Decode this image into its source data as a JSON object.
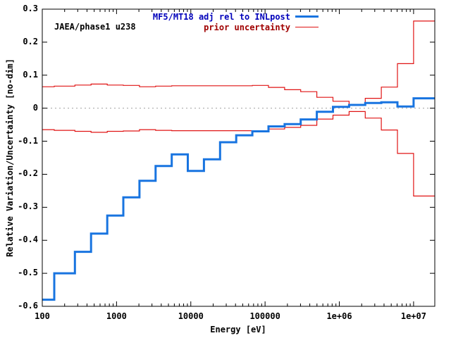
{
  "figure": {
    "annotation": "JAEA/phase1 u238",
    "x_label": "Energy [eV]",
    "y_label": "Relative Variation/Uncertainty [no-dim]"
  },
  "legend": [
    {
      "label": "MF5/MT18 adj rel to INLpost",
      "color": "#1874e0",
      "text_color": "#0000bb",
      "line_width": 3
    },
    {
      "label": "prior uncertainty",
      "color": "#e01414",
      "text_color": "#a00000",
      "line_width": 1
    }
  ],
  "chart_data": {
    "type": "line",
    "subtype": "step-histogram",
    "title": "",
    "xlabel": "Energy [eV]",
    "ylabel": "Relative Variation/Uncertainty [no-dim]",
    "x_scale": "log",
    "xlim": [
      100,
      19300000
    ],
    "ylim": [
      -0.6,
      0.3
    ],
    "grid": "zero-line-only",
    "legend_position": "top-right-inside",
    "x_ticks": [
      {
        "label": "100",
        "value": 100
      },
      {
        "label": "1000",
        "value": 1000
      },
      {
        "label": "10000",
        "value": 10000
      },
      {
        "label": "100000",
        "value": 100000
      },
      {
        "label": "1e+06",
        "value": 1000000
      },
      {
        "label": "1e+07",
        "value": 10000000
      }
    ],
    "y_ticks": [
      {
        "label": "0.3",
        "value": 0.3
      },
      {
        "label": "0.2",
        "value": 0.2
      },
      {
        "label": "0.1",
        "value": 0.1
      },
      {
        "label": "0",
        "value": 0
      },
      {
        "label": "-0.1",
        "value": -0.1
      },
      {
        "label": "-0.2",
        "value": -0.2
      },
      {
        "label": "-0.3",
        "value": -0.3
      },
      {
        "label": "-0.4",
        "value": -0.4
      },
      {
        "label": "-0.5",
        "value": -0.5
      },
      {
        "label": "-0.6",
        "value": -0.6
      }
    ],
    "group_boundaries_eV": [
      100,
      145,
      275,
      454,
      749,
      1234,
      2035,
      3355,
      5531,
      9119,
      15030,
      24790,
      40870,
      67380,
      111100,
      183200,
      302000,
      497900,
      820900,
      1353000,
      2231000,
      3679000,
      6065000,
      10000000,
      19300000
    ],
    "series": [
      {
        "name": "MF5/MT18 adj rel to INLpost",
        "color": "#1874e0",
        "width": 3,
        "values": [
          -0.58,
          -0.5,
          -0.435,
          -0.38,
          -0.325,
          -0.27,
          -0.22,
          -0.175,
          -0.14,
          -0.19,
          -0.155,
          -0.103,
          -0.082,
          -0.07,
          -0.055,
          -0.048,
          -0.034,
          -0.011,
          0.004,
          0.01,
          0.016,
          0.018,
          0.005,
          0.03
        ]
      },
      {
        "name": "prior uncertainty (upper)",
        "color": "#e01414",
        "width": 1.2,
        "values": [
          0.065,
          0.067,
          0.07,
          0.073,
          0.07,
          0.069,
          0.065,
          0.067,
          0.068,
          0.068,
          0.068,
          0.068,
          0.068,
          0.069,
          0.063,
          0.056,
          0.05,
          0.033,
          0.021,
          0.011,
          0.03,
          0.064,
          0.135,
          0.264
        ]
      },
      {
        "name": "prior uncertainty (lower)",
        "color": "#e01414",
        "width": 1.2,
        "values": [
          -0.065,
          -0.067,
          -0.07,
          -0.073,
          -0.07,
          -0.069,
          -0.065,
          -0.067,
          -0.068,
          -0.068,
          -0.068,
          -0.068,
          -0.068,
          -0.069,
          -0.063,
          -0.058,
          -0.052,
          -0.033,
          -0.021,
          -0.01,
          -0.03,
          -0.066,
          -0.137,
          -0.266
        ]
      }
    ],
    "zero_line": {
      "value": 0,
      "style": "dotted",
      "color": "#a0a0a0"
    }
  }
}
